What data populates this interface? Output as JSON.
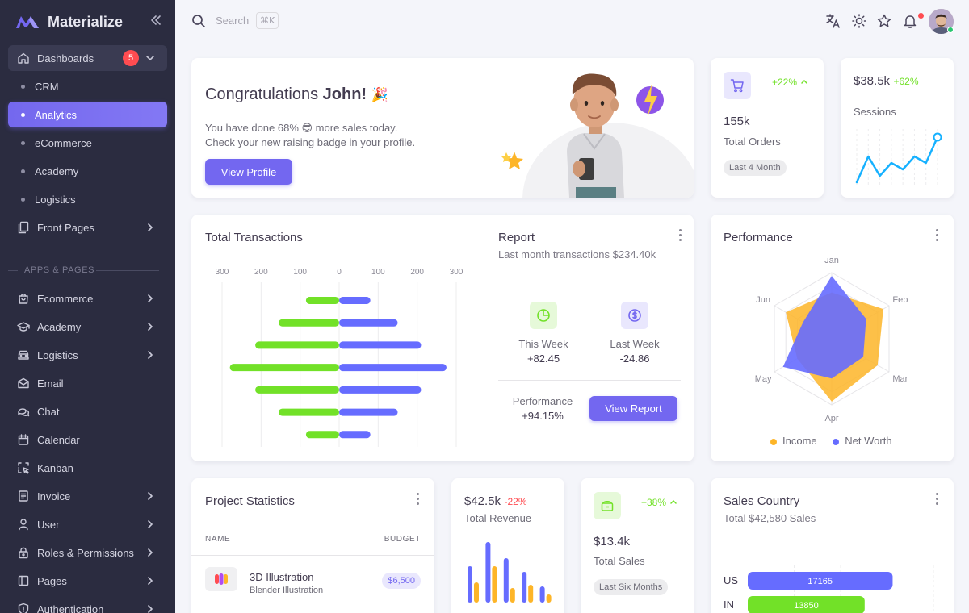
{
  "brand": {
    "name": "Materialize",
    "color": "#7367f0"
  },
  "sidebar": {
    "dashboards": {
      "label": "Dashboards",
      "badge": "5"
    },
    "dashboard_items": [
      {
        "label": "CRM"
      },
      {
        "label": "Analytics",
        "active": true
      },
      {
        "label": "eCommerce"
      },
      {
        "label": "Academy"
      },
      {
        "label": "Logistics"
      }
    ],
    "front_pages": "Front Pages",
    "section_label": "APPS & PAGES",
    "apps": [
      {
        "label": "Ecommerce",
        "icon": "shopping-bag-icon",
        "chevron": true
      },
      {
        "label": "Academy",
        "icon": "graduation-cap-icon",
        "chevron": true
      },
      {
        "label": "Logistics",
        "icon": "truck-icon",
        "chevron": true
      },
      {
        "label": "Email",
        "icon": "mail-icon",
        "chevron": false
      },
      {
        "label": "Chat",
        "icon": "chat-icon",
        "chevron": false
      },
      {
        "label": "Calendar",
        "icon": "calendar-icon",
        "chevron": false
      },
      {
        "label": "Kanban",
        "icon": "kanban-icon",
        "chevron": false
      },
      {
        "label": "Invoice",
        "icon": "invoice-icon",
        "chevron": true
      },
      {
        "label": "User",
        "icon": "user-icon",
        "chevron": true
      },
      {
        "label": "Roles & Permissions",
        "icon": "lock-icon",
        "chevron": true
      },
      {
        "label": "Pages",
        "icon": "layout-icon",
        "chevron": true
      },
      {
        "label": "Authentication",
        "icon": "shield-icon",
        "chevron": true
      }
    ]
  },
  "topbar": {
    "search_placeholder": "Search",
    "shortcut": "⌘K"
  },
  "congrats": {
    "title_prefix": "Congratulations ",
    "title_name": "John!",
    "title_emoji": "🎉",
    "line1": "You have done 68% 😎 more sales today.",
    "line2": "Check your new raising badge in your profile.",
    "button": "View Profile"
  },
  "orders": {
    "change": "+22%",
    "value": "155k",
    "label": "Total Orders",
    "pill": "Last 4 Month"
  },
  "sessions": {
    "value": "$38.5k",
    "change": "+62%",
    "label": "Sessions",
    "chart_data": {
      "type": "line",
      "x": [
        1,
        2,
        3,
        4,
        5,
        6,
        7,
        8
      ],
      "values": [
        0,
        4,
        1,
        3,
        2,
        4,
        3,
        7
      ],
      "ylim": [
        0,
        7.5
      ],
      "color": "#16b1ff"
    }
  },
  "transactions": {
    "title": "Total Transactions",
    "chart_data": {
      "type": "bar",
      "ticks": [
        "300",
        "200",
        "100",
        "0",
        "100",
        "200",
        "300"
      ],
      "xlim": [
        -300,
        300
      ],
      "series": [
        {
          "color": "#72e128",
          "values": [
            -85,
            -155,
            -215,
            -280,
            -215,
            -155,
            -85
          ]
        },
        {
          "color": "#666cff",
          "values": [
            80,
            150,
            210,
            275,
            210,
            150,
            80
          ]
        }
      ]
    }
  },
  "report": {
    "title": "Report",
    "subtitle": "Last month transactions $234.40k",
    "this_week_label": "This Week",
    "this_week_value": "+82.45",
    "last_week_label": "Last Week",
    "last_week_value": "-24.86",
    "performance_label": "Performance",
    "performance_value": "+94.15%",
    "button": "View Report"
  },
  "performance": {
    "title": "Performance",
    "legend": [
      "Income",
      "Net Worth"
    ],
    "chart_data": {
      "type": "radar",
      "axes": [
        "Jan",
        "Feb",
        "Mar",
        "Apr",
        "May",
        "Jun"
      ],
      "rmax": 100,
      "series": [
        {
          "color": "#fdb528",
          "values": [
            70,
            90,
            80,
            95,
            60,
            80
          ]
        },
        {
          "color": "#666cff",
          "values": [
            95,
            60,
            55,
            60,
            85,
            50
          ]
        }
      ]
    }
  },
  "project_stats": {
    "title": "Project Statistics",
    "col_name": "NAME",
    "col_budget": "BUDGET",
    "rows": [
      {
        "name": "3D Illustration",
        "sub": "Blender Illustration",
        "budget": "$6,500"
      }
    ]
  },
  "revenue": {
    "value": "$42.5k",
    "change": "-22%",
    "label": "Total Revenue",
    "chart_data": {
      "type": "bar",
      "categories": [
        "1",
        "2",
        "3",
        "4",
        "5"
      ],
      "series": [
        {
          "color": "#666cff",
          "values": [
            45,
            75,
            55,
            38,
            20
          ]
        },
        {
          "color": "#fdb528",
          "values": [
            25,
            45,
            18,
            22,
            10
          ]
        }
      ],
      "ylim": [
        0,
        80
      ]
    }
  },
  "total_sales": {
    "change": "+38%",
    "value": "$13.4k",
    "label": "Total Sales",
    "pill": "Last Six Months"
  },
  "sales_country": {
    "title": "Sales Country",
    "subtitle": "Total $42,580 Sales",
    "chart_data": {
      "type": "bar",
      "categories": [
        "US",
        "IN"
      ],
      "values": [
        17165,
        13850
      ],
      "xlim": [
        0,
        22000
      ],
      "colors": [
        "#666cff",
        "#72e128"
      ]
    }
  }
}
